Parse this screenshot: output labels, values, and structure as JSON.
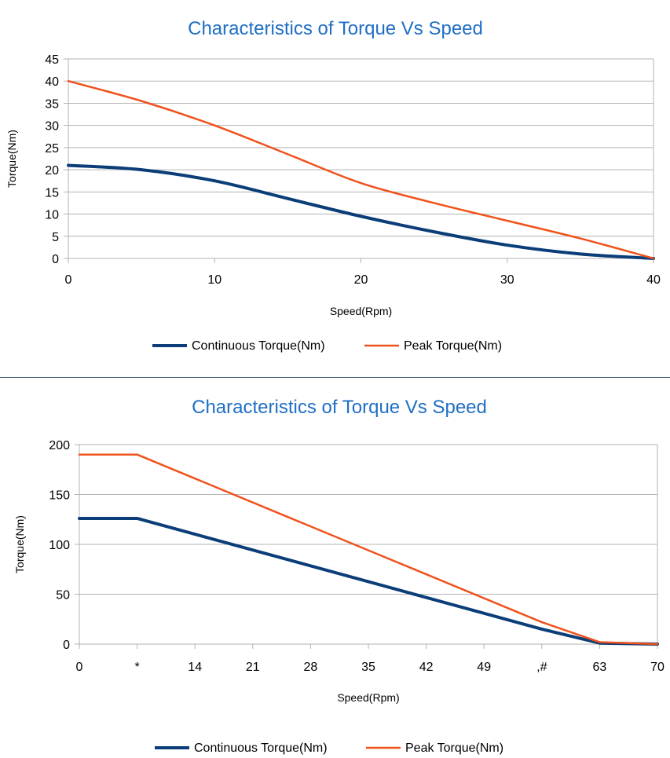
{
  "colors": {
    "title": "#1f6fc5",
    "continuous": "#0b3d78",
    "peak": "#f0521c",
    "grid": "#b3b3b3",
    "axis": "#b3b3b3"
  },
  "chart_data": [
    {
      "type": "line",
      "title": "Characteristics of Torque Vs Speed",
      "xlabel": "Speed(Rpm)",
      "ylabel": "Torque(Nm)",
      "xlim": [
        0,
        40
      ],
      "ylim": [
        0,
        45
      ],
      "xticks": [
        0,
        10,
        20,
        30,
        40
      ],
      "xtick_labels": [
        "0",
        "10",
        "20",
        "30",
        "40"
      ],
      "yticks": [
        0,
        5,
        10,
        15,
        20,
        25,
        30,
        35,
        40,
        45
      ],
      "grid": true,
      "legend": "bottom",
      "series": [
        {
          "name": "Continuous Torque(Nm)",
          "x": [
            0,
            5,
            10,
            15,
            20,
            25,
            30,
            35,
            40
          ],
          "values": [
            21,
            20,
            17.5,
            13.5,
            9.5,
            6,
            3,
            1,
            0
          ]
        },
        {
          "name": "Peak Torque(Nm)",
          "x": [
            0,
            5,
            10,
            15,
            20,
            25,
            30,
            35,
            40
          ],
          "values": [
            40,
            35.5,
            30,
            23.5,
            17,
            12.5,
            8.5,
            4.5,
            0
          ]
        }
      ]
    },
    {
      "type": "line",
      "title": "Characteristics of Torque Vs Speed",
      "xlabel": "Speed(Rpm)",
      "ylabel": "Torque(Nm)",
      "xlim": [
        0,
        70
      ],
      "ylim": [
        0,
        200
      ],
      "xticks": [
        0,
        7,
        14,
        21,
        28,
        35,
        42,
        49,
        56,
        63,
        70
      ],
      "xtick_labels": [
        "0",
        "*",
        "14",
        "21",
        "28",
        "35",
        "42",
        "49",
        ",#",
        "63",
        "70"
      ],
      "yticks": [
        0,
        50,
        100,
        150,
        200
      ],
      "grid": true,
      "legend": "bottom",
      "series": [
        {
          "name": "Continuous Torque(Nm)",
          "x": [
            0,
            7,
            56,
            63,
            70
          ],
          "values": [
            126,
            126,
            15,
            1,
            0
          ]
        },
        {
          "name": "Peak Torque(Nm)",
          "x": [
            0,
            7,
            56,
            63,
            70
          ],
          "values": [
            190,
            190,
            22,
            2,
            0
          ]
        }
      ]
    }
  ]
}
